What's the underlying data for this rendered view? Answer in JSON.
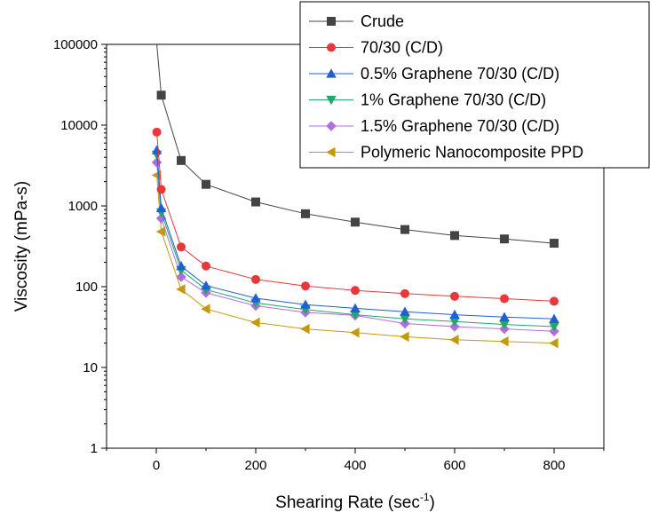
{
  "chart_data": {
    "type": "line",
    "xlabel": "Shearing Rate (sec",
    "xlabel_sup": "-1",
    "xlabel_close": ")",
    "ylabel": "Viscosity (mPa-s)",
    "yscale": "log",
    "xlim": [
      -100,
      900
    ],
    "ylim": [
      1,
      100000
    ],
    "x_ticks": [
      0,
      200,
      400,
      600,
      800
    ],
    "x_tick_labels": [
      "0",
      "200",
      "400",
      "600",
      "800"
    ],
    "y_ticks": [
      1,
      10,
      100,
      1000,
      10000,
      100000
    ],
    "y_tick_labels": [
      "1",
      "10",
      "100",
      "1000",
      "10000",
      "100000"
    ],
    "grid": false,
    "legend_position": "top-right",
    "x": [
      10,
      50,
      100,
      200,
      300,
      400,
      500,
      600,
      700,
      800
    ],
    "series": [
      {
        "name": "Crude",
        "marker": "square",
        "color": "#444444",
        "x0": 1,
        "y0": 100000,
        "values": [
          23500,
          3650,
          1850,
          1120,
          800,
          630,
          510,
          430,
          390,
          345
        ]
      },
      {
        "name": "70/30 (C/D)",
        "marker": "circle",
        "color": "#e8383b",
        "x0": 1,
        "y0": 8200,
        "values": [
          1600,
          310,
          180,
          123,
          102,
          90,
          82,
          76,
          71,
          66
        ]
      },
      {
        "name": "0.5% Graphene 70/30 (C/D)",
        "marker": "triangle-up",
        "color": "#1f5fd6",
        "x0": 1,
        "y0": 4900,
        "values": [
          940,
          180,
          103,
          72,
          60,
          54,
          49,
          45,
          42,
          40
        ]
      },
      {
        "name": "1% Graphene 70/30 (C/D)",
        "marker": "triangle-down",
        "color": "#1fa866",
        "x0": 1,
        "y0": 4300,
        "values": [
          830,
          160,
          92,
          63,
          52,
          45,
          40,
          37,
          34,
          32
        ]
      },
      {
        "name": "1.5% Graphene 70/30 (C/D)",
        "marker": "diamond",
        "color": "#b26de0",
        "x0": 1,
        "y0": 3450,
        "values": [
          700,
          132,
          84,
          58,
          48,
          44,
          35,
          32,
          30,
          28
        ]
      },
      {
        "name": "Polymeric Nanocomposite PPD",
        "marker": "triangle-left",
        "color": "#c49a0c",
        "x0": 1,
        "y0": 2400,
        "values": [
          480,
          93,
          53,
          36,
          30,
          27,
          24,
          22,
          21,
          20
        ]
      }
    ]
  }
}
